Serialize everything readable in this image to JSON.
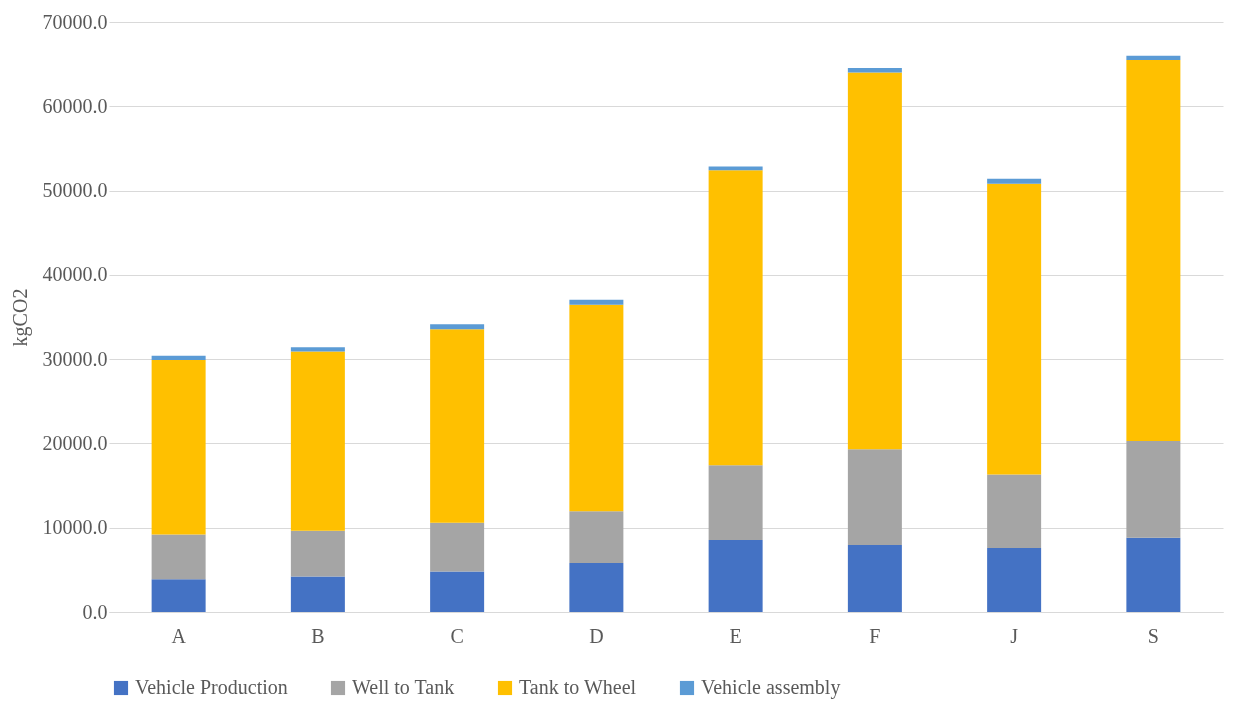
{
  "chart_data": {
    "type": "bar",
    "stacked": true,
    "ylabel": "kgCO2",
    "categories": [
      "A",
      "B",
      "C",
      "D",
      "E",
      "F",
      "J",
      "S"
    ],
    "series": [
      {
        "name": "Vehicle Production",
        "color": "#4472c4",
        "values": [
          3900,
          4200,
          4800,
          5800,
          8550,
          7950,
          7600,
          8800
        ]
      },
      {
        "name": "Well to Tank",
        "color": "#a5a5a5",
        "values": [
          5300,
          5450,
          5800,
          6150,
          8850,
          11350,
          8700,
          11500
        ]
      },
      {
        "name": "Tank to Wheel",
        "color": "#ffc000",
        "values": [
          20700,
          21250,
          22950,
          24500,
          35000,
          44700,
          34500,
          45200
        ]
      },
      {
        "name": "Vehicle assembly",
        "color": "#5b9bd5",
        "values": [
          500,
          500,
          600,
          600,
          450,
          550,
          600,
          500
        ]
      }
    ],
    "ylim": [
      0,
      70000
    ],
    "yticks": [
      {
        "value": 0,
        "label": "0.0"
      },
      {
        "value": 10000,
        "label": "10000.0"
      },
      {
        "value": 20000,
        "label": "20000.0"
      },
      {
        "value": 30000,
        "label": "30000.0"
      },
      {
        "value": 40000,
        "label": "40000.0"
      },
      {
        "value": 50000,
        "label": "50000.0"
      },
      {
        "value": 60000,
        "label": "60000.0"
      },
      {
        "value": 70000,
        "label": "70000.0"
      }
    ],
    "grid": "y",
    "legend": "bottom"
  }
}
